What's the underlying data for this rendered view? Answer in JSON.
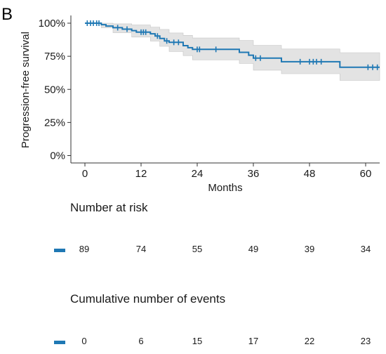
{
  "panel_label": "B",
  "colors": {
    "curve": "#1f78b4",
    "band": "#e3e3e3",
    "band_edge": "#c6c6c6"
  },
  "chart_data": {
    "type": "line",
    "subtype": "kaplan-meier",
    "title": "",
    "xlabel": "Months",
    "ylabel": "Progression-free survival",
    "xlim": [
      -3,
      63
    ],
    "ylim": [
      0,
      100
    ],
    "x_ticks": [
      0,
      12,
      24,
      36,
      48,
      60
    ],
    "x_tick_labels": [
      "0",
      "12",
      "24",
      "36",
      "48",
      "60"
    ],
    "y_ticks": [
      0,
      25,
      50,
      75,
      100
    ],
    "y_tick_labels": [
      "0%",
      "25%",
      "50%",
      "75%",
      "100%"
    ],
    "grid": false,
    "legend": "none",
    "series": [
      {
        "steps": [
          {
            "x": 0,
            "y": 100
          },
          {
            "x": 3.5,
            "y": 98.9
          },
          {
            "x": 4.5,
            "y": 97.8
          },
          {
            "x": 6,
            "y": 96.6
          },
          {
            "x": 8,
            "y": 95.5
          },
          {
            "x": 10,
            "y": 94.4
          },
          {
            "x": 11,
            "y": 93.2
          },
          {
            "x": 14,
            "y": 92
          },
          {
            "x": 15,
            "y": 90.3
          },
          {
            "x": 16,
            "y": 88.5
          },
          {
            "x": 17,
            "y": 86.6
          },
          {
            "x": 18,
            "y": 85.5
          },
          {
            "x": 21,
            "y": 83
          },
          {
            "x": 22,
            "y": 81.5
          },
          {
            "x": 23,
            "y": 80.2
          },
          {
            "x": 33,
            "y": 78
          },
          {
            "x": 35,
            "y": 75.8
          },
          {
            "x": 36,
            "y": 73.6
          },
          {
            "x": 42,
            "y": 70.9
          },
          {
            "x": 54.5,
            "y": 66.7
          }
        ],
        "ci_lower": [
          {
            "x": 0,
            "y": 100
          },
          {
            "x": 3.5,
            "y": 96.5
          },
          {
            "x": 6,
            "y": 92.8
          },
          {
            "x": 10,
            "y": 89.5
          },
          {
            "x": 14,
            "y": 86.5
          },
          {
            "x": 16,
            "y": 82.5
          },
          {
            "x": 18,
            "y": 78.6
          },
          {
            "x": 21,
            "y": 75.5
          },
          {
            "x": 23,
            "y": 72.3
          },
          {
            "x": 33,
            "y": 69.6
          },
          {
            "x": 36,
            "y": 64.5
          },
          {
            "x": 42,
            "y": 61.8
          },
          {
            "x": 54.5,
            "y": 56.8
          }
        ],
        "ci_upper": [
          {
            "x": 0,
            "y": 100
          },
          {
            "x": 6,
            "y": 99.5
          },
          {
            "x": 10,
            "y": 98.6
          },
          {
            "x": 14,
            "y": 97
          },
          {
            "x": 16,
            "y": 95.3
          },
          {
            "x": 18,
            "y": 92.6
          },
          {
            "x": 21,
            "y": 90.8
          },
          {
            "x": 23,
            "y": 88.8
          },
          {
            "x": 33,
            "y": 87
          },
          {
            "x": 36,
            "y": 83.3
          },
          {
            "x": 42,
            "y": 80.5
          },
          {
            "x": 54.5,
            "y": 77.7
          }
        ],
        "x_end": 63,
        "censored": [
          {
            "x": 0.5,
            "y": 100
          },
          {
            "x": 1.2,
            "y": 100
          },
          {
            "x": 1.8,
            "y": 100
          },
          {
            "x": 2.5,
            "y": 100
          },
          {
            "x": 3,
            "y": 100
          },
          {
            "x": 7,
            "y": 96.6
          },
          {
            "x": 9,
            "y": 95.5
          },
          {
            "x": 12,
            "y": 93.2
          },
          {
            "x": 12.5,
            "y": 93.2
          },
          {
            "x": 13,
            "y": 93.2
          },
          {
            "x": 15.5,
            "y": 90.3
          },
          {
            "x": 17.5,
            "y": 86.6
          },
          {
            "x": 19,
            "y": 85.5
          },
          {
            "x": 20,
            "y": 85.5
          },
          {
            "x": 24,
            "y": 80.2
          },
          {
            "x": 24.5,
            "y": 80.2
          },
          {
            "x": 28,
            "y": 80.2
          },
          {
            "x": 36.5,
            "y": 73.6
          },
          {
            "x": 37.5,
            "y": 73.6
          },
          {
            "x": 46,
            "y": 70.9
          },
          {
            "x": 48,
            "y": 70.9
          },
          {
            "x": 48.8,
            "y": 70.9
          },
          {
            "x": 49.5,
            "y": 70.9
          },
          {
            "x": 50.5,
            "y": 70.9
          },
          {
            "x": 60.5,
            "y": 66.7
          },
          {
            "x": 61.5,
            "y": 66.7
          },
          {
            "x": 62.5,
            "y": 66.7
          }
        ]
      }
    ]
  },
  "risk_table": {
    "title": "Number at risk",
    "values": [
      "89",
      "74",
      "55",
      "49",
      "39",
      "34"
    ]
  },
  "events_table": {
    "title": "Cumulative number of events",
    "values": [
      "0",
      "6",
      "15",
      "17",
      "22",
      "23"
    ]
  }
}
